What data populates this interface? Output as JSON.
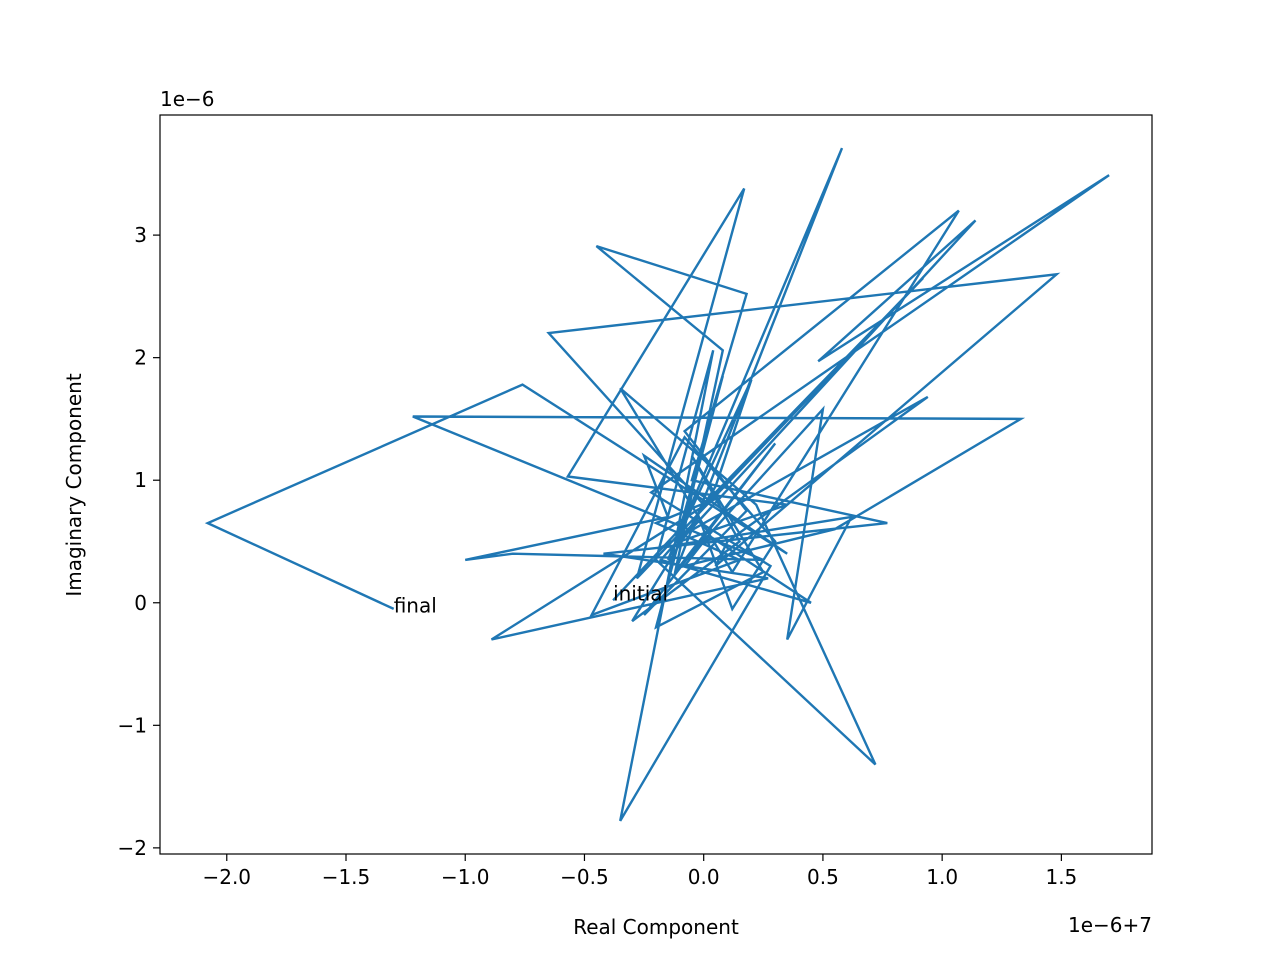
{
  "chart_data": {
    "type": "line",
    "xlabel": "Real Component",
    "ylabel": "Imaginary Component",
    "x_offset_label": "1e−6+7",
    "y_offset_label": "1e−6",
    "xlim": [
      -2.28,
      1.88
    ],
    "ylim": [
      -2.05,
      3.98
    ],
    "x_ticks": [
      {
        "value": -2.0,
        "label": "−2.0"
      },
      {
        "value": -1.5,
        "label": "−1.5"
      },
      {
        "value": -1.0,
        "label": "−1.0"
      },
      {
        "value": -0.5,
        "label": "−0.5"
      },
      {
        "value": 0.0,
        "label": "0.0"
      },
      {
        "value": 0.5,
        "label": "0.5"
      },
      {
        "value": 1.0,
        "label": "1.0"
      },
      {
        "value": 1.5,
        "label": "1.5"
      }
    ],
    "y_ticks": [
      {
        "value": -2,
        "label": "−2"
      },
      {
        "value": -1,
        "label": "−1"
      },
      {
        "value": 0,
        "label": "0"
      },
      {
        "value": 1,
        "label": "1"
      },
      {
        "value": 2,
        "label": "2"
      },
      {
        "value": 3,
        "label": "3"
      }
    ],
    "color": "#1f77b4",
    "grid": false,
    "annotations": [
      {
        "text": "initial",
        "x": -0.38,
        "y": 0.02
      },
      {
        "text": "final",
        "x": -1.3,
        "y": -0.08
      }
    ],
    "series": [
      {
        "x": [
          -0.38,
          -0.1,
          0.08,
          -0.2,
          0.25,
          -0.05,
          0.15,
          -0.3,
          0.05,
          0.2,
          -0.15,
          0.58,
          -0.12,
          0.3,
          -0.25,
          0.18,
          -0.08,
          1.07,
          0.12,
          -0.35,
          0.22,
          0.72,
          -0.2,
          0.04,
          -0.35,
          0.28,
          -0.22,
          1.7,
          0.48,
          1.14,
          -0.1,
          0.35,
          -0.57,
          0.17,
          -0.28,
          0.92,
          0.0,
          -0.65,
          1.48,
          0.05,
          0.1,
          0.94,
          -0.18,
          0.62,
          0.35,
          0.5,
          -0.12,
          0.08,
          -0.45,
          0.18,
          -0.05,
          0.77,
          -0.42,
          0.27,
          -0.89,
          0.05,
          -0.2,
          0.15,
          -0.47,
          -0.08,
          0.3,
          0.12,
          -0.02,
          -0.18,
          0.45,
          0.02,
          -0.08,
          0.55,
          1.33,
          -1.22,
          0.25,
          -0.8,
          -1.0,
          -0.15,
          -0.25,
          0.35,
          -0.76,
          -2.08,
          -1.3
        ],
        "y": [
          0.02,
          0.6,
          1.85,
          -0.2,
          0.25,
          1.2,
          0.5,
          -0.15,
          0.95,
          1.82,
          0.35,
          3.71,
          0.25,
          1.3,
          -0.1,
          0.75,
          1.4,
          3.2,
          0.25,
          1.75,
          0.8,
          -1.32,
          0.35,
          2.06,
          -1.78,
          0.3,
          0.9,
          3.49,
          1.97,
          3.12,
          0.5,
          0.8,
          1.03,
          3.38,
          0.2,
          2.65,
          0.8,
          2.2,
          2.68,
          0.3,
          0.5,
          1.68,
          0.45,
          0.7,
          -0.3,
          1.58,
          0.25,
          2.06,
          2.91,
          2.52,
          1.0,
          0.65,
          0.4,
          0.2,
          -0.3,
          0.85,
          0.65,
          0.35,
          -0.1,
          1.35,
          0.5,
          -0.05,
          0.7,
          0.35,
          0.0,
          0.55,
          0.3,
          0.6,
          1.5,
          1.52,
          0.35,
          0.4,
          0.35,
          0.7,
          1.2,
          0.4,
          1.78,
          0.65,
          -0.05
        ]
      }
    ]
  }
}
